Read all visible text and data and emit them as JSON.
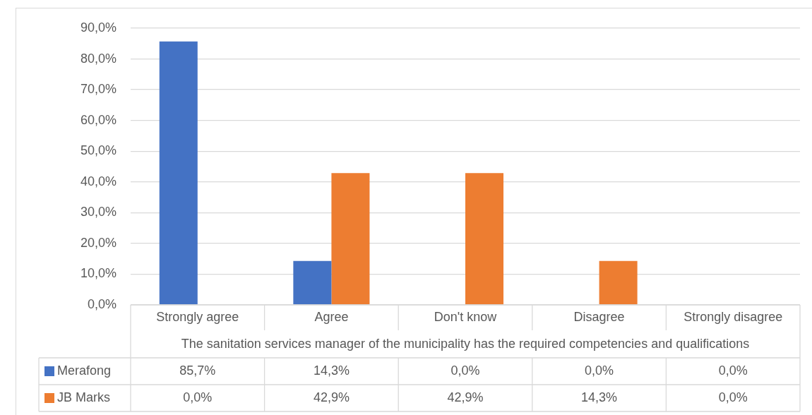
{
  "chart_data": {
    "type": "bar",
    "xlabel": "The sanitation services manager of the municipality has the required competencies and qualifications",
    "categories": [
      "Strongly agree",
      "Agree",
      "Don't know",
      "Disagree",
      "Strongly disagree"
    ],
    "series": [
      {
        "name": "Merafong",
        "color": "#4472c4",
        "values": [
          85.7,
          14.3,
          0,
          0,
          0
        ],
        "value_labels": [
          "85,7%",
          "14,3%",
          "0,0%",
          "0,0%",
          "0,0%"
        ]
      },
      {
        "name": "JB Marks",
        "color": "#ed7d31",
        "values": [
          0,
          42.9,
          42.9,
          14.3,
          0
        ],
        "value_labels": [
          "0,0%",
          "42,9%",
          "42,9%",
          "14,3%",
          "0,0%"
        ]
      }
    ],
    "ylim": [
      0,
      90
    ],
    "yticks": [
      {
        "value": 0,
        "label": "0,0%"
      },
      {
        "value": 10,
        "label": "10,0%"
      },
      {
        "value": 20,
        "label": "20,0%"
      },
      {
        "value": 30,
        "label": "30,0%"
      },
      {
        "value": 40,
        "label": "40,0%"
      },
      {
        "value": 50,
        "label": "50,0%"
      },
      {
        "value": 60,
        "label": "60,0%"
      },
      {
        "value": 70,
        "label": "70,0%"
      },
      {
        "value": 80,
        "label": "80,0%"
      },
      {
        "value": 90,
        "label": "90,0%"
      }
    ],
    "grid": "y",
    "legend": "bottom"
  }
}
